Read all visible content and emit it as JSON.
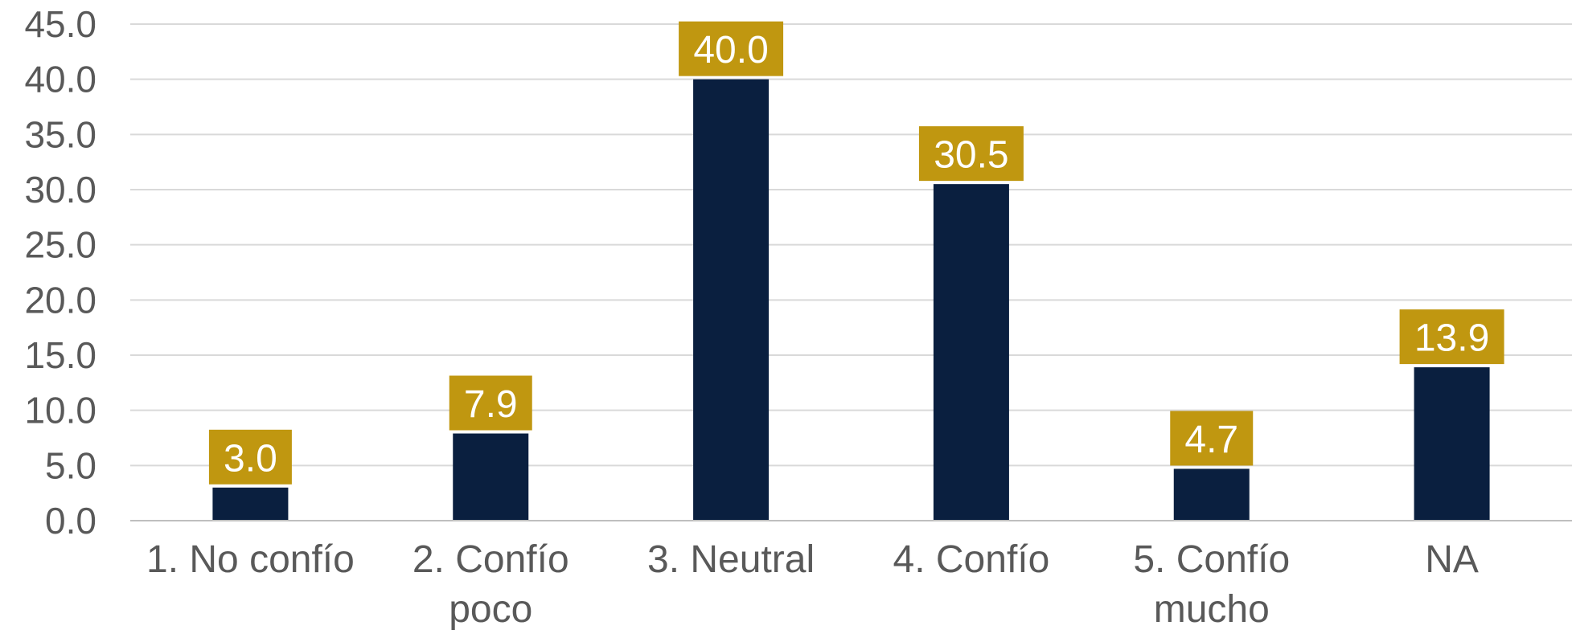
{
  "chart_data": {
    "type": "bar",
    "categories": [
      [
        "1. No confío"
      ],
      [
        "2. Confío",
        "poco"
      ],
      [
        "3. Neutral"
      ],
      [
        "4. Confío"
      ],
      [
        "5. Confío",
        "mucho"
      ],
      [
        "NA"
      ]
    ],
    "values": [
      3.0,
      7.9,
      40.0,
      30.5,
      4.7,
      13.9
    ],
    "data_labels": [
      "3.0",
      "7.9",
      "40.0",
      "30.5",
      "4.7",
      "13.9"
    ],
    "y_ticks": [
      "0.0",
      "5.0",
      "10.0",
      "15.0",
      "20.0",
      "25.0",
      "30.0",
      "35.0",
      "40.0",
      "45.0"
    ],
    "ylim": [
      0,
      45
    ],
    "title": "",
    "xlabel": "",
    "ylabel": "",
    "grid": true,
    "legend": "none",
    "colors": {
      "bar": "#0a1f3f",
      "label_bg": "#c09710",
      "label_text": "#ffffff"
    }
  }
}
